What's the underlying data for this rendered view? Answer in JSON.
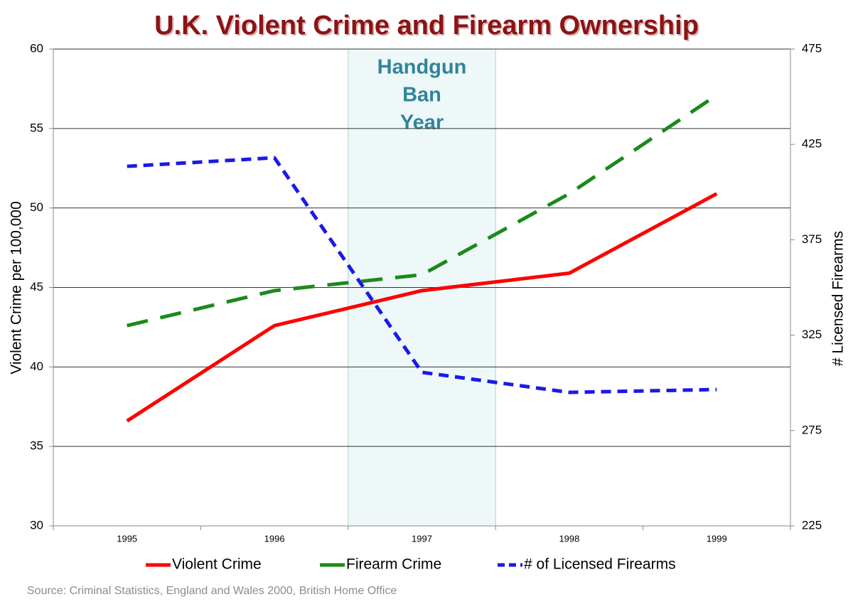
{
  "chart_data": {
    "type": "line",
    "title": "U.K. Violent Crime and Firearm Ownership",
    "y_label": "Violent Crime per 100,000",
    "y2_label": "# Licensed Firearms",
    "categories": [
      "1995",
      "1996",
      "1997",
      "1998",
      "1999"
    ],
    "series": [
      {
        "name": "Violent Crime",
        "color": "#ff0000",
        "values": [
          36.6,
          42.6,
          44.8,
          45.9,
          50.9
        ]
      },
      {
        "name": "Firearm Crime",
        "color": "#1a8a1a",
        "values": [
          42.6,
          44.8,
          45.8,
          50.9,
          57.1
        ]
      },
      {
        "name": "# of Licensed Firearms",
        "color": "#1a1ae6",
        "axis": "y2",
        "values": [
          413.5,
          418,
          305.5,
          295,
          296.5
        ]
      }
    ],
    "ylim": [
      30,
      60
    ],
    "yticks": [
      30,
      35,
      40,
      45,
      50,
      55,
      60
    ],
    "y2lim": [
      225,
      475
    ],
    "y2ticks": [
      225,
      275,
      325,
      375,
      425,
      475
    ],
    "grid": true,
    "annotation": [
      "Handgun",
      "Ban",
      "Year"
    ],
    "source": "Source: Criminal Statistics, England and Wales 2000, British Home Office"
  }
}
